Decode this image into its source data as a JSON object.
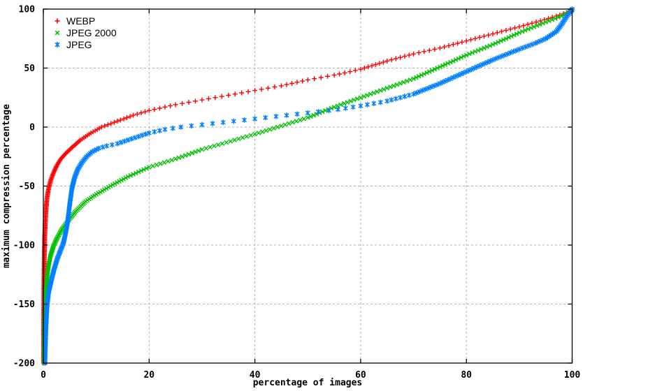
{
  "chart_data": {
    "type": "scatter",
    "title": "",
    "xlabel": "percentage of images",
    "ylabel": "maximum compression percentage",
    "xlim": [
      0,
      100
    ],
    "ylim": [
      -200,
      100
    ],
    "xticks": [
      0,
      20,
      40,
      60,
      80,
      100
    ],
    "yticks": [
      -200,
      -150,
      -100,
      -50,
      0,
      50,
      100
    ],
    "grid": true,
    "grid_color": "#b3b3b3",
    "axis_color": "#000000",
    "background": "#ffffff",
    "legend_position": "top-left",
    "marker_sampling": "one marker per integer y value, x interpolated along anchors",
    "series": [
      {
        "name": "WEBP",
        "color": "#ff0000",
        "marker": "plus",
        "anchors": [
          [
            0.05,
            -200
          ],
          [
            0.08,
            -160
          ],
          [
            0.12,
            -130
          ],
          [
            0.18,
            -110
          ],
          [
            0.25,
            -95
          ],
          [
            0.35,
            -82
          ],
          [
            0.5,
            -70
          ],
          [
            0.7,
            -60
          ],
          [
            1.0,
            -52
          ],
          [
            1.4,
            -45
          ],
          [
            1.9,
            -39
          ],
          [
            2.5,
            -33
          ],
          [
            3.3,
            -27
          ],
          [
            4.3,
            -22
          ],
          [
            5.5,
            -17
          ],
          [
            7,
            -11
          ],
          [
            9,
            -5
          ],
          [
            11,
            0
          ],
          [
            14,
            5
          ],
          [
            17,
            10
          ],
          [
            20,
            14
          ],
          [
            25,
            19
          ],
          [
            30,
            23
          ],
          [
            35,
            27
          ],
          [
            40,
            31
          ],
          [
            45,
            35
          ],
          [
            50,
            40
          ],
          [
            55,
            44
          ],
          [
            60,
            49
          ],
          [
            65,
            56
          ],
          [
            70,
            62
          ],
          [
            75,
            67
          ],
          [
            80,
            73
          ],
          [
            85,
            79
          ],
          [
            90,
            85
          ],
          [
            94,
            90
          ],
          [
            97,
            94
          ],
          [
            99,
            97
          ],
          [
            100,
            100
          ]
        ]
      },
      {
        "name": "JPEG 2000",
        "color": "#00c000",
        "marker": "cross",
        "anchors": [
          [
            0.1,
            -200
          ],
          [
            0.15,
            -175
          ],
          [
            0.25,
            -160
          ],
          [
            0.4,
            -145
          ],
          [
            0.6,
            -132
          ],
          [
            0.9,
            -120
          ],
          [
            1.3,
            -110
          ],
          [
            1.9,
            -101
          ],
          [
            2.6,
            -94
          ],
          [
            3.6,
            -86
          ],
          [
            4.6,
            -80
          ],
          [
            6,
            -72
          ],
          [
            8,
            -63
          ],
          [
            10,
            -57
          ],
          [
            12.7,
            -50
          ],
          [
            16,
            -42
          ],
          [
            20,
            -34
          ],
          [
            25,
            -27
          ],
          [
            30,
            -19
          ],
          [
            35,
            -12.5
          ],
          [
            40,
            -6
          ],
          [
            45,
            1
          ],
          [
            50,
            8
          ],
          [
            55,
            17
          ],
          [
            60,
            25
          ],
          [
            65,
            33
          ],
          [
            70,
            41
          ],
          [
            75,
            51
          ],
          [
            80,
            61
          ],
          [
            85,
            70
          ],
          [
            90,
            80
          ],
          [
            95,
            89
          ],
          [
            98,
            94
          ],
          [
            100,
            99
          ]
        ]
      },
      {
        "name": "JPEG",
        "color": "#0080ff",
        "marker": "asterisk",
        "anchors": [
          [
            0.3,
            -200
          ],
          [
            0.5,
            -170
          ],
          [
            0.7,
            -152
          ],
          [
            1.0,
            -140
          ],
          [
            1.5,
            -130
          ],
          [
            2.0,
            -121
          ],
          [
            2.6,
            -112
          ],
          [
            3.2,
            -105
          ],
          [
            3.8,
            -98
          ],
          [
            4.2,
            -90
          ],
          [
            4.6,
            -80
          ],
          [
            5.0,
            -65
          ],
          [
            5.4,
            -52
          ],
          [
            5.9,
            -43
          ],
          [
            6.5,
            -36
          ],
          [
            7.3,
            -30
          ],
          [
            8.2,
            -25
          ],
          [
            9.2,
            -21
          ],
          [
            10.5,
            -18
          ],
          [
            12,
            -16
          ],
          [
            14,
            -14
          ],
          [
            16,
            -11
          ],
          [
            18,
            -8
          ],
          [
            20,
            -5
          ],
          [
            23,
            -2
          ],
          [
            26,
            0
          ],
          [
            30,
            2
          ],
          [
            34,
            4
          ],
          [
            38,
            6
          ],
          [
            42,
            8
          ],
          [
            46,
            10
          ],
          [
            50,
            12
          ],
          [
            55,
            14.5
          ],
          [
            60,
            18
          ],
          [
            65,
            22
          ],
          [
            70,
            28
          ],
          [
            75,
            37
          ],
          [
            80,
            47
          ],
          [
            85,
            57
          ],
          [
            90,
            66
          ],
          [
            93,
            71
          ],
          [
            95,
            75
          ],
          [
            97,
            81
          ],
          [
            98,
            87
          ],
          [
            99,
            94
          ],
          [
            99.6,
            97
          ],
          [
            100,
            100
          ]
        ]
      }
    ]
  }
}
